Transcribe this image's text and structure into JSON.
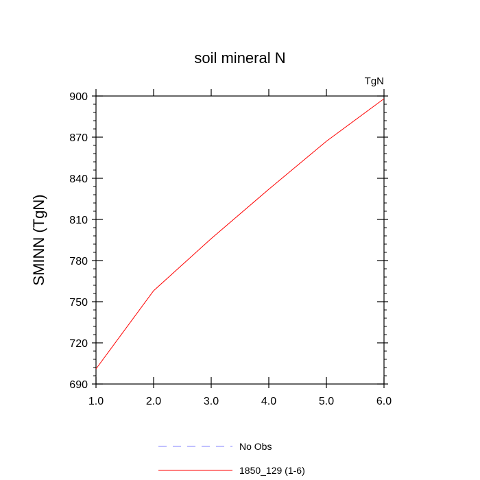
{
  "chart_data": {
    "type": "line",
    "title": "soil mineral N",
    "units_label": "TgN",
    "ylabel": "SMINN  (TgN)",
    "xlabel": "",
    "xlim": [
      1.0,
      6.0
    ],
    "ylim": [
      690,
      900
    ],
    "xticks": [
      "1.0",
      "2.0",
      "3.0",
      "4.0",
      "5.0",
      "6.0"
    ],
    "yticks": [
      "690",
      "720",
      "750",
      "780",
      "810",
      "840",
      "870",
      "900"
    ],
    "grid": false,
    "legend_position": "bottom",
    "series": [
      {
        "name": "No Obs",
        "color": "#8080ff",
        "style": "dashed",
        "x": [],
        "y": []
      },
      {
        "name": "1850_129 (1-6)",
        "color": "#ff0000",
        "style": "solid",
        "x": [
          1,
          2,
          3,
          4,
          5,
          6
        ],
        "y": [
          701,
          758,
          796,
          832,
          867,
          898
        ]
      }
    ]
  }
}
